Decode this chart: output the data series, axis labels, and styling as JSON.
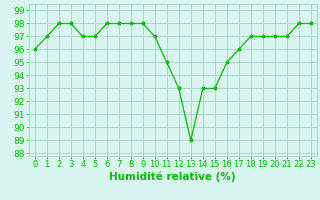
{
  "x": [
    0,
    1,
    2,
    3,
    4,
    5,
    6,
    7,
    8,
    9,
    10,
    11,
    12,
    13,
    14,
    15,
    16,
    17,
    18,
    19,
    20,
    21,
    22,
    23
  ],
  "y": [
    96,
    97,
    98,
    98,
    97,
    97,
    98,
    98,
    98,
    98,
    97,
    95,
    93,
    89,
    93,
    93,
    95,
    96,
    97,
    97,
    97,
    97,
    98,
    98
  ],
  "line_color": "#00bb00",
  "marker": "*",
  "marker_color": "#00bb00",
  "background_color": "#d8f5f0",
  "grid_color": "#99ccbb",
  "xlabel": "Humidité relative (%)",
  "xlabel_color": "#00bb00",
  "ylim": [
    87.8,
    99.5
  ],
  "xlim": [
    -0.5,
    23.5
  ],
  "yticks": [
    88,
    89,
    90,
    91,
    92,
    93,
    94,
    95,
    96,
    97,
    98,
    99
  ],
  "xticks": [
    0,
    1,
    2,
    3,
    4,
    5,
    6,
    7,
    8,
    9,
    10,
    11,
    12,
    13,
    14,
    15,
    16,
    17,
    18,
    19,
    20,
    21,
    22,
    23
  ],
  "tick_color": "#00bb00",
  "ytick_fontsize": 6.5,
  "xtick_fontsize": 6,
  "xlabel_fontsize": 7.5,
  "linewidth": 0.9,
  "markersize": 2.5
}
